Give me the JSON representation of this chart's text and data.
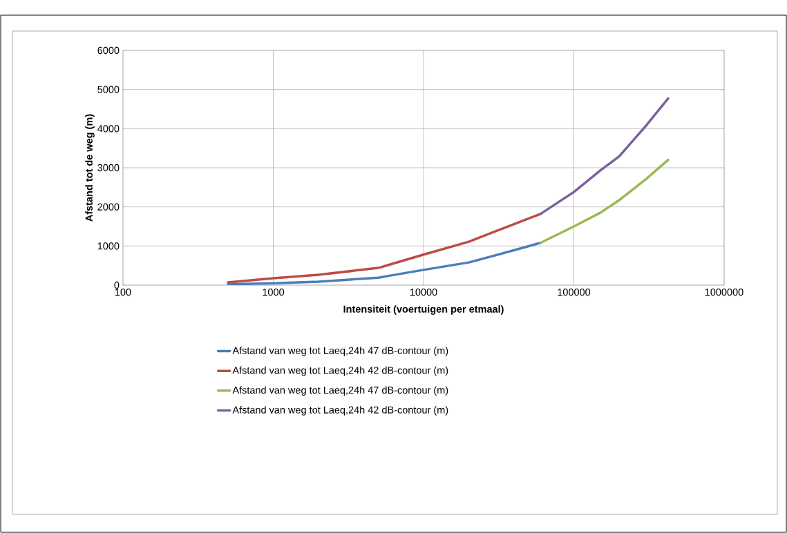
{
  "chart_data": {
    "type": "line",
    "xlabel": "Intensiteit (voertuigen per etmaal)",
    "ylabel": "Afstand tot de weg (m)",
    "log": "x",
    "grid": true,
    "legend": "bottom",
    "marker": "none",
    "line_style": "solid",
    "xlim": [
      100,
      1000000
    ],
    "xticks": [
      100,
      1000,
      10000,
      100000,
      1000000
    ],
    "ylim": [
      0,
      6000
    ],
    "yticks": [
      0,
      1000,
      2000,
      3000,
      4000,
      5000,
      6000
    ],
    "series": [
      {
        "name": "Afstand van weg tot Laeq,24h 47 dB-contour (m)",
        "color": "#4a7ebb",
        "x": [
          500,
          1000,
          2000,
          5000,
          6000,
          10000,
          20000,
          30000,
          60000
        ],
        "values": [
          20,
          50,
          90,
          190,
          245,
          390,
          580,
          760,
          1080
        ]
      },
      {
        "name": "Afstand van weg tot Laeq,24h 42 dB-contour (m)",
        "color": "#be4b48",
        "x": [
          500,
          1000,
          2000,
          5000,
          6000,
          10000,
          20000,
          30000,
          60000
        ],
        "values": [
          70,
          175,
          265,
          440,
          530,
          780,
          1110,
          1375,
          1820
        ]
      },
      {
        "name": "Afstand van weg tot Laeq,24h 47 dB-contour (m)",
        "color": "#98b954",
        "x": [
          60000,
          100000,
          150000,
          200000,
          300000,
          424000
        ],
        "values": [
          1080,
          1500,
          1850,
          2170,
          2700,
          3200
        ]
      },
      {
        "name": "Afstand van weg tot Laeq,24h 42 dB-contour (m)",
        "color": "#7d60a0",
        "x": [
          60000,
          100000,
          150000,
          200000,
          300000,
          424000
        ],
        "values": [
          1820,
          2380,
          2930,
          3290,
          4060,
          4770
        ]
      }
    ]
  }
}
